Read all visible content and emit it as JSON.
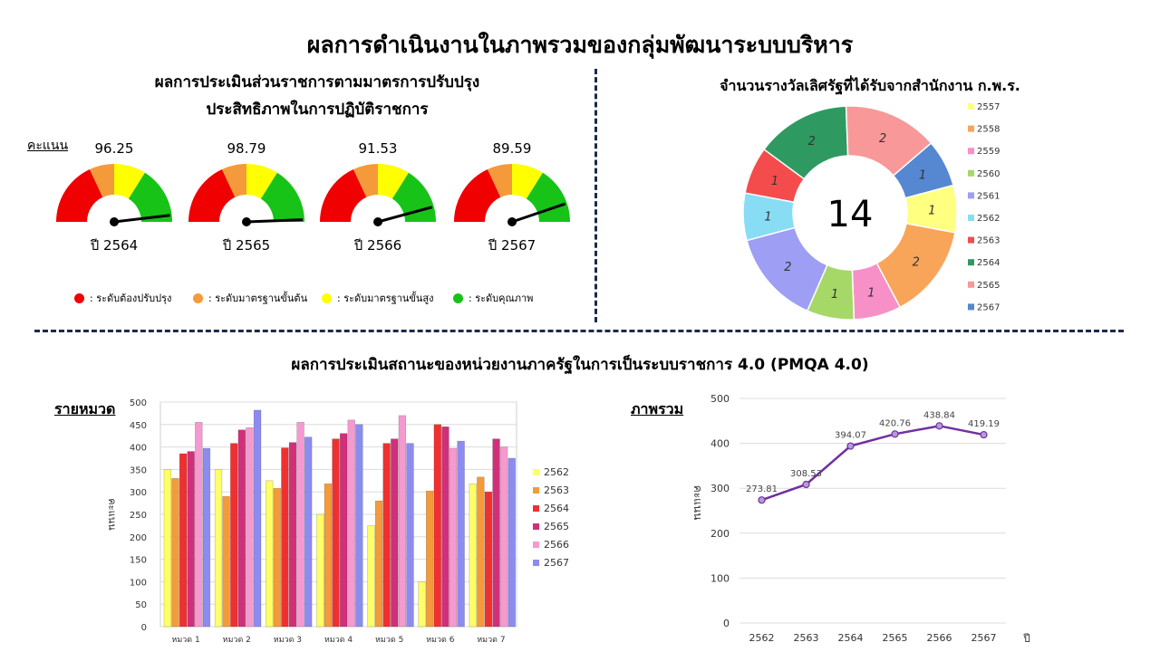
{
  "main_title": "ผลการดำเนินงานในภาพรวมของกลุ่มพัฒนาระบบบริหาร",
  "gauge_section": {
    "title_line1": "ผลการประเมินส่วนราชการตามมาตรการปรับปรุง",
    "title_line2": "ประสิทธิภาพในการปฏิบัติราชการ",
    "score_label": "คะแนน",
    "legend": [
      {
        "label": ": ระดับต้องปรับปรุง",
        "color": "#f00000"
      },
      {
        "label": ": ระดับมาตรฐานขั้นต้น",
        "color": "#f59a3a"
      },
      {
        "label": ": ระดับมาตรฐานขั้นสูง",
        "color": "#ffff00"
      },
      {
        "label": ": ระดับคุณภาพ",
        "color": "#16c316"
      }
    ]
  },
  "donut_section": {
    "title": "จำนวนรางวัลเลิศรัฐที่ได้รับจากสำนักงาน ก.พ.ร.",
    "total": "14"
  },
  "pmqa_section": {
    "title": "ผลการประเมินสถานะของหน่วยงานภาครัฐในการเป็นระบบราชการ 4.0 (PMQA 4.0)",
    "bar_label": "รายหมวด",
    "line_label": "ภาพรวม"
  },
  "chart_data": [
    {
      "type": "gauge",
      "scores": [
        {
          "year_label": "ปี 2564",
          "value": "96.25"
        },
        {
          "year_label": "ปี 2565",
          "value": "98.79"
        },
        {
          "year_label": "ปี 2566",
          "value": "91.53"
        },
        {
          "year_label": "ปี 2567",
          "value": "89.59"
        }
      ],
      "zone_colors": [
        "#f00000",
        "#f59a3a",
        "#ffff00",
        "#16c316"
      ]
    },
    {
      "type": "pie",
      "categories": [
        "2557",
        "2558",
        "2559",
        "2560",
        "2561",
        "2562",
        "2563",
        "2564",
        "2565",
        "2567"
      ],
      "values": [
        1,
        2,
        1,
        1,
        2,
        1,
        1,
        2,
        2,
        1
      ],
      "colors": [
        "#ffff80",
        "#f8a55a",
        "#f890c8",
        "#a6d868",
        "#9e9ef5",
        "#88ddf5",
        "#f44c4c",
        "#2e9a62",
        "#f89898",
        "#5588d0"
      ]
    },
    {
      "type": "bar",
      "ylabel": "คะแนน",
      "ylim": [
        0,
        500
      ],
      "y_ticks": [
        "0",
        "50",
        "100",
        "150",
        "200",
        "250",
        "300",
        "350",
        "400",
        "450",
        "500"
      ],
      "categories": [
        "หมวด 1",
        "หมวด 2",
        "หมวด 3",
        "หมวด 4",
        "หมวด 5",
        "หมวด 6",
        "หมวด 7"
      ],
      "series": [
        {
          "name": "2562",
          "color": "#ffff66",
          "values": [
            350,
            350,
            325,
            250,
            225,
            100,
            318
          ]
        },
        {
          "name": "2563",
          "color": "#f59a3a",
          "values": [
            330,
            290,
            308,
            318,
            280,
            302,
            333
          ]
        },
        {
          "name": "2564",
          "color": "#f03030",
          "values": [
            385,
            408,
            398,
            418,
            408,
            450,
            300
          ]
        },
        {
          "name": "2565",
          "color": "#d0307a",
          "values": [
            390,
            438,
            410,
            430,
            418,
            445,
            418
          ]
        },
        {
          "name": "2566",
          "color": "#f59ad0",
          "values": [
            455,
            443,
            455,
            460,
            470,
            397,
            400
          ]
        },
        {
          "name": "2567",
          "color": "#8c8cf0",
          "values": [
            397,
            482,
            422,
            450,
            408,
            413,
            375
          ]
        }
      ]
    },
    {
      "type": "line",
      "xlabel": "ปี",
      "ylabel": "คะแนน",
      "ylim": [
        0,
        500
      ],
      "y_ticks": [
        "0",
        "100",
        "200",
        "300",
        "400",
        "500"
      ],
      "x": [
        "2562",
        "2563",
        "2564",
        "2565",
        "2566",
        "2567"
      ],
      "values": [
        273.81,
        308.53,
        394.07,
        420.76,
        438.84,
        419.19
      ],
      "labels": [
        "273.81",
        "308.53",
        "394.07",
        "420.76",
        "438.84",
        "419.19"
      ],
      "color": "#7030a0"
    }
  ]
}
